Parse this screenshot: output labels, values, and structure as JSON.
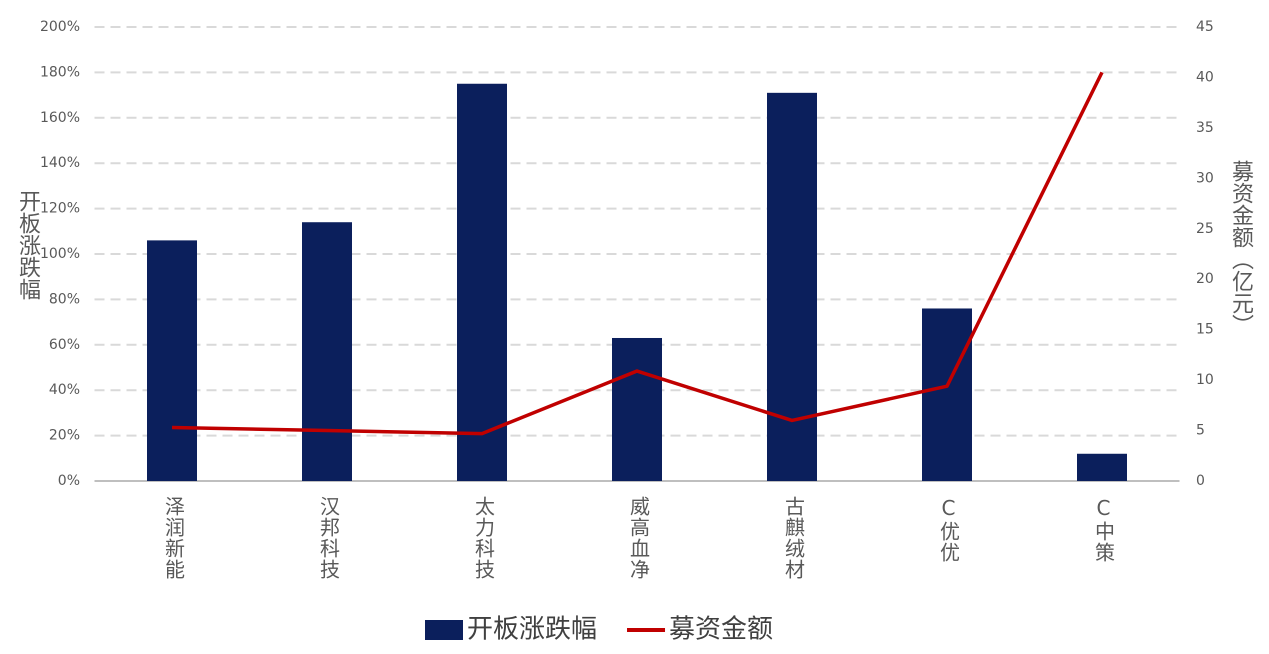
{
  "chart_data": {
    "type": "bar_line",
    "categories": [
      "泽润新能",
      "汉邦科技",
      "太力科技",
      "威高血净",
      "古麒绒材",
      "C优优",
      "C中策"
    ],
    "series": [
      {
        "name": "开板涨跌幅",
        "type": "bar",
        "color": "#0b1f5c",
        "values": [
          106,
          114,
          175,
          63,
          171,
          76,
          12
        ]
      },
      {
        "name": "募资金额",
        "type": "line",
        "axis": "y2",
        "color": "#c00000",
        "values": [
          5.3,
          5.0,
          4.7,
          10.9,
          6.0,
          9.4,
          40.5
        ]
      }
    ],
    "y_label": "开板涨跌幅",
    "y2_label": "募资金额（亿元）",
    "ylim": [
      0,
      200
    ],
    "yticks": [
      {
        "value": 0,
        "label": "0%"
      },
      {
        "value": 20,
        "label": "20%"
      },
      {
        "value": 40,
        "label": "40%"
      },
      {
        "value": 60,
        "label": "60%"
      },
      {
        "value": 80,
        "label": "80%"
      },
      {
        "value": 100,
        "label": "100%"
      },
      {
        "value": 120,
        "label": "120%"
      },
      {
        "value": 140,
        "label": "140%"
      },
      {
        "value": 160,
        "label": "160%"
      },
      {
        "value": 180,
        "label": "180%"
      },
      {
        "value": 200,
        "label": "200%"
      }
    ],
    "y2lim": [
      0,
      45
    ],
    "y2ticks": [
      0,
      5,
      10,
      15,
      20,
      25,
      30,
      35,
      40,
      45
    ],
    "grid": true,
    "legend": "bottom"
  }
}
